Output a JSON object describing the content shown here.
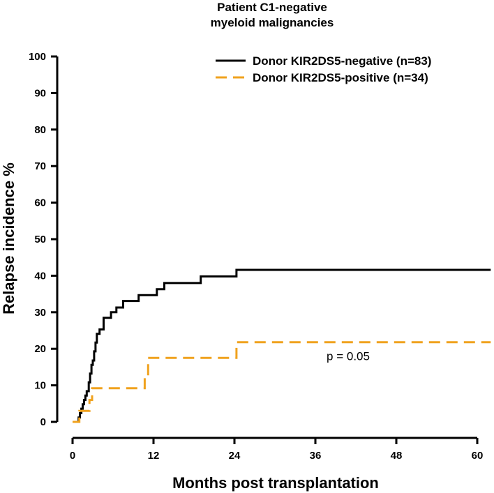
{
  "chart_data": {
    "type": "line",
    "subtype": "step",
    "title_lines": [
      "Patient C1-negative",
      "myeloid malignancies"
    ],
    "xlabel": "Months post transplantation",
    "ylabel": "Relapse incidence %",
    "xlim": [
      0,
      62
    ],
    "ylim": [
      0,
      100
    ],
    "x_ticks": [
      0,
      12,
      24,
      36,
      48,
      60
    ],
    "x_tick_labels": [
      "0",
      "12",
      "24",
      "36",
      "48",
      "60"
    ],
    "y_ticks": [
      0,
      10,
      20,
      30,
      40,
      50,
      60,
      70,
      80,
      90,
      100
    ],
    "y_tick_labels": [
      "0",
      "10",
      "20",
      "30",
      "40",
      "50",
      "60",
      "70",
      "80",
      "90",
      "100"
    ],
    "grid": false,
    "legend_position": "top-right",
    "series": [
      {
        "name": "Donor KIR2DS5-negative (n=83)",
        "color": "#000000",
        "dashed": false,
        "points": [
          [
            0,
            0
          ],
          [
            0.9,
            0
          ],
          [
            0.9,
            1.2
          ],
          [
            1.1,
            1.2
          ],
          [
            1.1,
            2.4
          ],
          [
            1.3,
            2.4
          ],
          [
            1.3,
            3.6
          ],
          [
            1.5,
            3.6
          ],
          [
            1.5,
            4.8
          ],
          [
            1.7,
            4.8
          ],
          [
            1.7,
            6.0
          ],
          [
            1.9,
            6.0
          ],
          [
            1.9,
            7.2
          ],
          [
            2.1,
            7.2
          ],
          [
            2.1,
            8.4
          ],
          [
            2.4,
            8.4
          ],
          [
            2.4,
            10.8
          ],
          [
            2.6,
            10.8
          ],
          [
            2.6,
            13.2
          ],
          [
            2.8,
            13.2
          ],
          [
            2.8,
            15.6
          ],
          [
            3.0,
            15.6
          ],
          [
            3.0,
            16.8
          ],
          [
            3.2,
            16.8
          ],
          [
            3.2,
            19.3
          ],
          [
            3.4,
            19.3
          ],
          [
            3.4,
            21.7
          ],
          [
            3.6,
            21.7
          ],
          [
            3.6,
            24.1
          ],
          [
            4.0,
            24.1
          ],
          [
            4.0,
            25.3
          ],
          [
            4.6,
            25.3
          ],
          [
            4.6,
            28.5
          ],
          [
            5.7,
            28.5
          ],
          [
            5.7,
            30.0
          ],
          [
            6.5,
            30.0
          ],
          [
            6.5,
            31.3
          ],
          [
            7.5,
            31.3
          ],
          [
            7.5,
            33.1
          ],
          [
            9.8,
            33.1
          ],
          [
            9.8,
            34.7
          ],
          [
            12.5,
            34.7
          ],
          [
            12.5,
            36.3
          ],
          [
            13.6,
            36.3
          ],
          [
            13.6,
            38.0
          ],
          [
            19.0,
            38.0
          ],
          [
            19.0,
            39.8
          ],
          [
            24.3,
            39.8
          ],
          [
            24.3,
            41.6
          ],
          [
            62,
            41.6
          ]
        ]
      },
      {
        "name": "Donor KIR2DS5-positive (n=34)",
        "color": "#F0A21E",
        "dashed": true,
        "points": [
          [
            0,
            0
          ],
          [
            1.0,
            0
          ],
          [
            1.0,
            3.0
          ],
          [
            2.5,
            3.0
          ],
          [
            2.5,
            6.0
          ],
          [
            2.9,
            6.0
          ],
          [
            2.9,
            9.2
          ],
          [
            10.7,
            9.2
          ],
          [
            10.7,
            12.5
          ],
          [
            11.2,
            12.5
          ],
          [
            11.2,
            17.5
          ],
          [
            24.3,
            17.5
          ],
          [
            24.3,
            21.8
          ],
          [
            62,
            21.8
          ]
        ]
      }
    ],
    "annotation": "p = 0.05",
    "annotation_at": [
      30,
      16.5
    ]
  }
}
